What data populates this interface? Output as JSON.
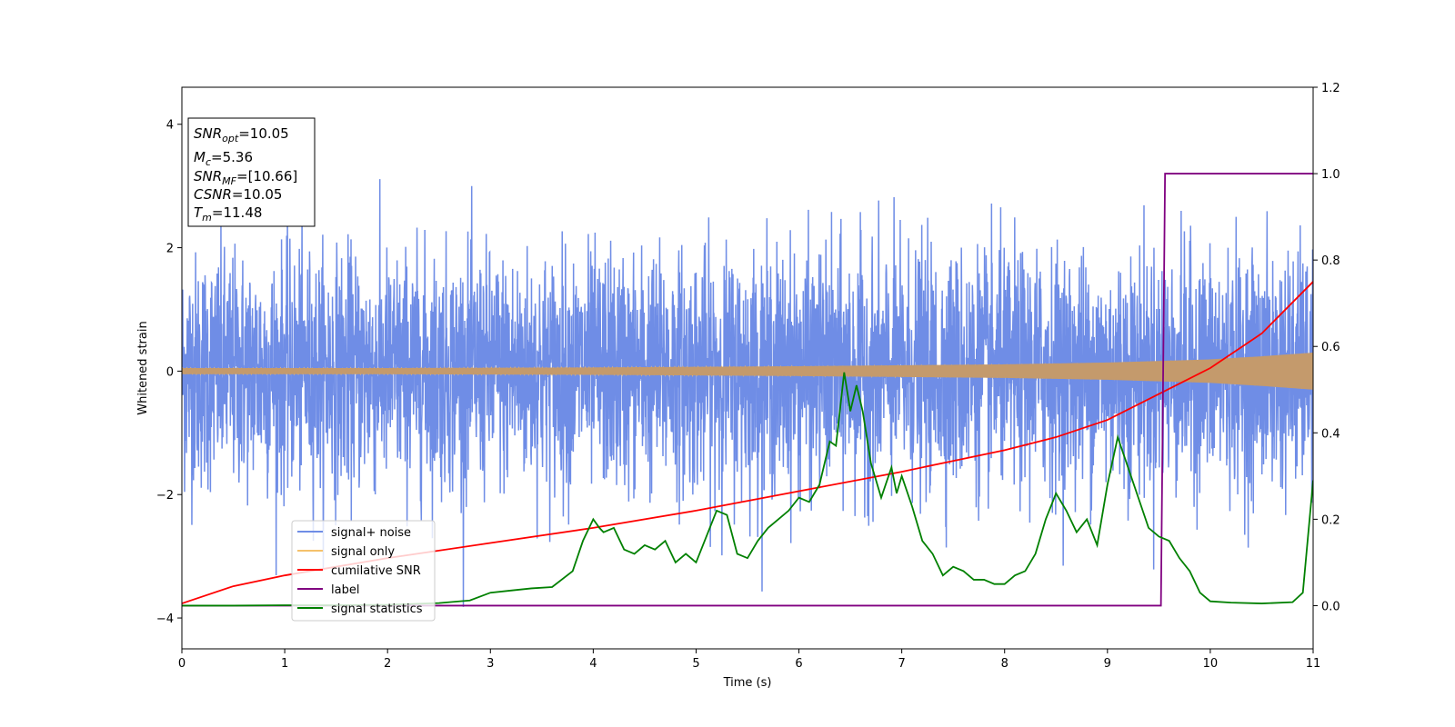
{
  "chart_data": {
    "type": "line",
    "xlabel": "Time (s)",
    "ylabel": "Whitened strain",
    "xlim": [
      0,
      11
    ],
    "ylim_left": [
      -4.5,
      4.6
    ],
    "ylim_right": [
      -0.1,
      1.2
    ],
    "x_ticks": [
      0,
      1,
      2,
      3,
      4,
      5,
      6,
      7,
      8,
      9,
      10,
      11
    ],
    "y_left_ticks": [
      -4,
      -2,
      0,
      2,
      4
    ],
    "y_left_tick_labels": [
      "−4",
      "−2",
      "0",
      "2",
      "4"
    ],
    "y_right_ticks": [
      0.0,
      0.2,
      0.4,
      0.6,
      0.8,
      1.0,
      1.2
    ],
    "y_right_tick_labels": [
      "0.0",
      "0.2",
      "0.4",
      "0.6",
      "0.8",
      "1.0",
      "1.2"
    ],
    "grid": false,
    "legend_position": "lower-left",
    "info_box": {
      "position": "top-left",
      "lines": [
        {
          "sym": "SNR",
          "sub": "opt",
          "rest": "=10.05"
        },
        {
          "sym": "M",
          "sub": "c",
          "rest": "=5.36"
        },
        {
          "sym": "SNR",
          "sub": "MF",
          "rest": "=[10.66]"
        },
        {
          "sym": "CSNR",
          "sub": "",
          "rest": "=10.05"
        },
        {
          "sym": "T",
          "sub": "m",
          "rest": "=11.48"
        }
      ]
    },
    "series": [
      {
        "name": "signal+ noise",
        "axis": "left",
        "color": "#6f8de6",
        "kind": "noise",
        "approx_std": 0.95,
        "approx_max": 4.2,
        "approx_min": -4.1
      },
      {
        "name": "signal only",
        "axis": "left",
        "color": "#f5c16b",
        "kind": "chirp_envelope",
        "x": [
          0,
          2,
          4,
          6,
          8,
          9,
          10,
          10.5,
          11
        ],
        "amplitude": [
          0.05,
          0.05,
          0.06,
          0.08,
          0.11,
          0.14,
          0.19,
          0.24,
          0.3
        ]
      },
      {
        "name": "cumilative SNR",
        "axis": "right",
        "color": "#ff0000",
        "x": [
          0,
          0.5,
          1,
          2,
          3,
          4,
          5,
          6,
          7,
          8,
          8.5,
          9,
          9.5,
          10,
          10.5,
          11
        ],
        "y": [
          0.005,
          0.045,
          0.07,
          0.11,
          0.145,
          0.18,
          0.22,
          0.265,
          0.31,
          0.36,
          0.39,
          0.43,
          0.49,
          0.55,
          0.63,
          0.75
        ]
      },
      {
        "name": "label",
        "axis": "right",
        "color": "#800080",
        "x": [
          0,
          9.52,
          9.56,
          11
        ],
        "y": [
          0,
          0,
          1,
          1
        ]
      },
      {
        "name": "signal statistics",
        "axis": "right",
        "color": "#008000",
        "x": [
          0,
          0.5,
          1,
          1.5,
          2,
          2.5,
          2.8,
          3,
          3.2,
          3.4,
          3.6,
          3.8,
          3.9,
          4,
          4.06,
          4.1,
          4.2,
          4.3,
          4.4,
          4.5,
          4.6,
          4.7,
          4.8,
          4.9,
          5,
          5.1,
          5.2,
          5.3,
          5.4,
          5.5,
          5.6,
          5.7,
          5.8,
          5.9,
          6,
          6.1,
          6.2,
          6.3,
          6.36,
          6.44,
          6.5,
          6.56,
          6.62,
          6.7,
          6.8,
          6.9,
          6.95,
          7,
          7.1,
          7.2,
          7.3,
          7.4,
          7.5,
          7.6,
          7.7,
          7.8,
          7.9,
          8,
          8.1,
          8.2,
          8.3,
          8.4,
          8.5,
          8.6,
          8.7,
          8.8,
          8.9,
          9,
          9.1,
          9.2,
          9.3,
          9.4,
          9.5,
          9.6,
          9.7,
          9.8,
          9.9,
          10,
          10.2,
          10.5,
          10.8,
          10.9,
          11
        ],
        "y": [
          0,
          0,
          0.001,
          0.001,
          0.002,
          0.006,
          0.012,
          0.03,
          0.035,
          0.04,
          0.043,
          0.08,
          0.15,
          0.2,
          0.18,
          0.17,
          0.18,
          0.13,
          0.12,
          0.14,
          0.13,
          0.15,
          0.1,
          0.12,
          0.1,
          0.16,
          0.22,
          0.21,
          0.12,
          0.11,
          0.15,
          0.18,
          0.2,
          0.22,
          0.25,
          0.24,
          0.28,
          0.38,
          0.37,
          0.54,
          0.45,
          0.51,
          0.45,
          0.33,
          0.25,
          0.32,
          0.26,
          0.3,
          0.23,
          0.15,
          0.12,
          0.07,
          0.09,
          0.08,
          0.06,
          0.06,
          0.05,
          0.05,
          0.07,
          0.08,
          0.12,
          0.2,
          0.26,
          0.22,
          0.17,
          0.2,
          0.14,
          0.28,
          0.39,
          0.32,
          0.25,
          0.18,
          0.16,
          0.15,
          0.11,
          0.08,
          0.03,
          0.01,
          0.007,
          0.005,
          0.008,
          0.03,
          0.29
        ]
      }
    ]
  }
}
